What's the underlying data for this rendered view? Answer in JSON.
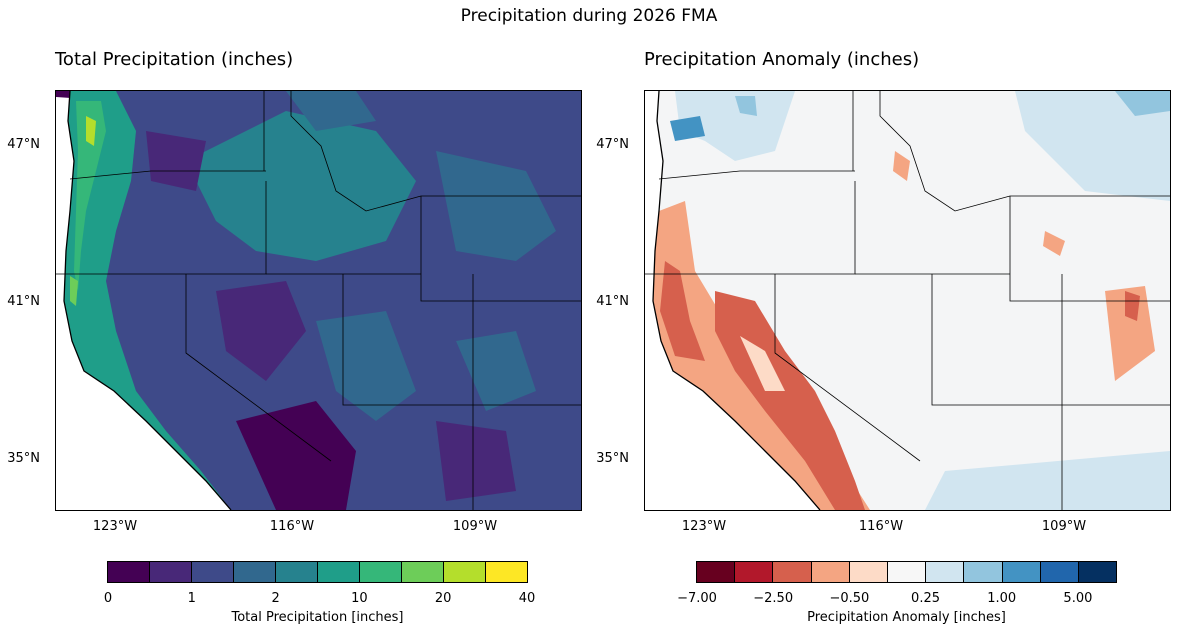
{
  "suptitle": "Precipitation during 2026 FMA",
  "left": {
    "title": "Total Precipitation (inches)",
    "lat_labels": [
      "47°N",
      "41°N",
      "35°N"
    ],
    "lon_labels": [
      "123°W",
      "116°W",
      "109°W"
    ],
    "colorbar": {
      "colors": [
        "#440154",
        "#482878",
        "#3e4a89",
        "#31688e",
        "#26828e",
        "#1f9e89",
        "#35b779",
        "#6dcd59",
        "#b4de2c",
        "#fde725"
      ],
      "tick_labels": [
        "0",
        "1",
        "2",
        "10",
        "20",
        "40"
      ],
      "label": "Total Precipitation [inches]"
    }
  },
  "right": {
    "title": "Precipitation Anomaly (inches)",
    "lat_labels": [
      "47°N",
      "41°N",
      "35°N"
    ],
    "lon_labels": [
      "123°W",
      "116°W",
      "109°W"
    ],
    "colorbar": {
      "colors": [
        "#67001f",
        "#b2182b",
        "#d6604d",
        "#f4a582",
        "#fddbc7",
        "#f7f7f7",
        "#d1e5f0",
        "#92c5de",
        "#4393c3",
        "#2166ac",
        "#053061"
      ],
      "tick_labels": [
        "−7.00",
        "−2.50",
        "−0.50",
        "0.25",
        "1.00",
        "5.00"
      ],
      "label": "Precipitation Anomaly [inches]"
    }
  }
}
